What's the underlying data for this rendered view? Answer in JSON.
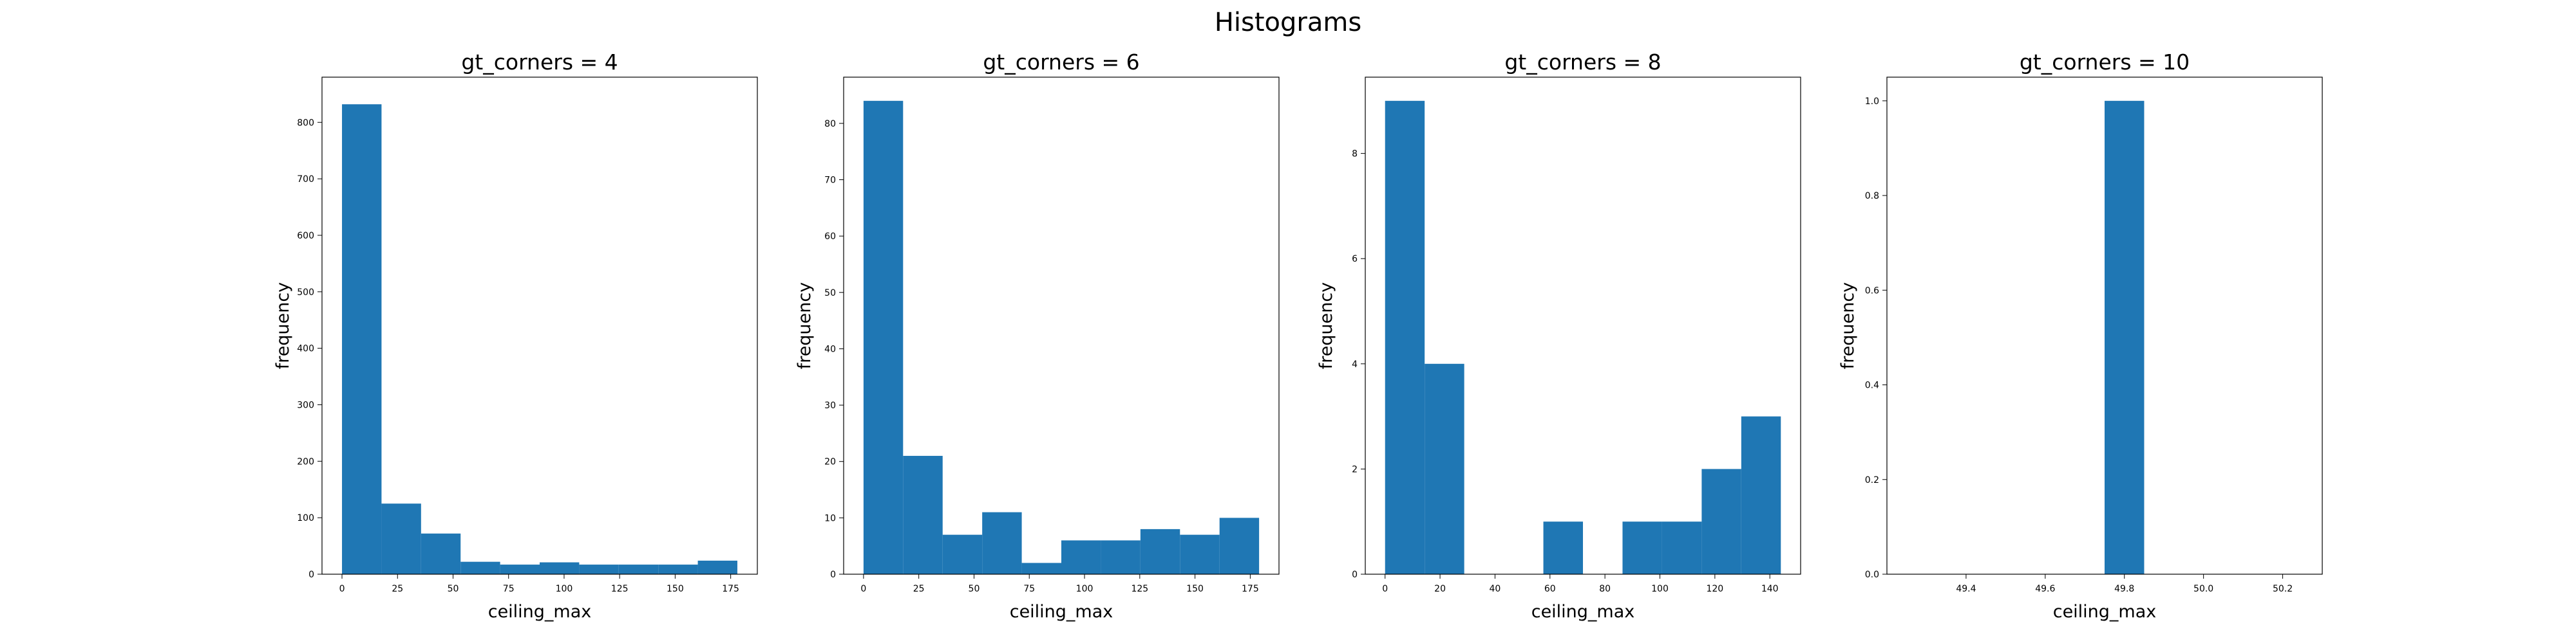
{
  "figure_title": "Histograms",
  "colors": {
    "bar": "#1f77b4"
  },
  "chart_data": [
    {
      "type": "bar",
      "title": "gt_corners = 4",
      "xlabel": "ceiling_max",
      "ylabel": "frequency",
      "bin_edges": [
        0,
        17.8,
        35.6,
        53.4,
        71.2,
        89,
        106.8,
        124.6,
        142.4,
        160.2,
        178
      ],
      "values": [
        832,
        125,
        72,
        22,
        17,
        21,
        17,
        17,
        17,
        24
      ],
      "xlim": [
        -9,
        187
      ],
      "ylim": [
        0,
        880
      ],
      "xticks": [
        0,
        25,
        50,
        75,
        100,
        125,
        150,
        175
      ],
      "xtick_labels": [
        "0",
        "25",
        "50",
        "75",
        "100",
        "125",
        "150",
        "175"
      ],
      "yticks": [
        0,
        100,
        200,
        300,
        400,
        500,
        600,
        700,
        800
      ],
      "ytick_labels": [
        "0",
        "100",
        "200",
        "300",
        "400",
        "500",
        "600",
        "700",
        "800"
      ]
    },
    {
      "type": "bar",
      "title": "gt_corners = 6",
      "xlabel": "ceiling_max",
      "ylabel": "frequency",
      "bin_edges": [
        0,
        17.9,
        35.8,
        53.7,
        71.6,
        89.5,
        107.4,
        125.3,
        143.2,
        161.1,
        179
      ],
      "values": [
        84,
        21,
        7,
        11,
        2,
        6,
        6,
        8,
        7,
        10
      ],
      "xlim": [
        -9,
        188
      ],
      "ylim": [
        0,
        88.2
      ],
      "xticks": [
        0,
        25,
        50,
        75,
        100,
        125,
        150,
        175
      ],
      "xtick_labels": [
        "0",
        "25",
        "50",
        "75",
        "100",
        "125",
        "150",
        "175"
      ],
      "yticks": [
        0,
        10,
        20,
        30,
        40,
        50,
        60,
        70,
        80
      ],
      "ytick_labels": [
        "0",
        "10",
        "20",
        "30",
        "40",
        "50",
        "60",
        "70",
        "80"
      ]
    },
    {
      "type": "bar",
      "title": "gt_corners = 8",
      "xlabel": "ceiling_max",
      "ylabel": "frequency",
      "bin_edges": [
        0,
        14.4,
        28.8,
        43.2,
        57.6,
        72,
        86.4,
        100.8,
        115.2,
        129.6,
        144
      ],
      "values": [
        9,
        4,
        0,
        0,
        1,
        0,
        1,
        1,
        2,
        3
      ],
      "xlim": [
        -7.2,
        151.2
      ],
      "ylim": [
        0,
        9.45
      ],
      "xticks": [
        0,
        20,
        40,
        60,
        80,
        100,
        120,
        140
      ],
      "xtick_labels": [
        "0",
        "20",
        "40",
        "60",
        "80",
        "100",
        "120",
        "140"
      ],
      "yticks": [
        0,
        2,
        4,
        6,
        8
      ],
      "ytick_labels": [
        "0",
        "2",
        "4",
        "6",
        "8"
      ]
    },
    {
      "type": "bar",
      "title": "gt_corners = 10",
      "xlabel": "ceiling_max",
      "ylabel": "frequency",
      "bin_edges": [
        49.25,
        49.35,
        49.45,
        49.55,
        49.65,
        49.75,
        49.85,
        49.95,
        50.05,
        50.15,
        50.25
      ],
      "values": [
        0,
        0,
        0,
        0,
        0,
        1,
        0,
        0,
        0,
        0
      ],
      "xlim": [
        49.2,
        50.3
      ],
      "ylim": [
        0,
        1.05
      ],
      "xticks": [
        49.4,
        49.6,
        49.8,
        50.0,
        50.2
      ],
      "xtick_labels": [
        "49.4",
        "49.6",
        "49.8",
        "50.0",
        "50.2"
      ],
      "yticks": [
        0,
        0.2,
        0.4,
        0.6,
        0.8,
        1.0
      ],
      "ytick_labels": [
        "0.0",
        "0.2",
        "0.4",
        "0.6",
        "0.8",
        "1.0"
      ]
    }
  ]
}
